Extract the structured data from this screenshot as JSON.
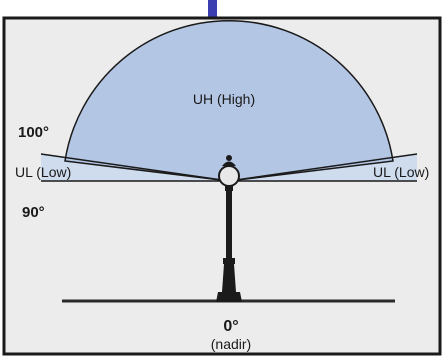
{
  "diagram": {
    "zones": {
      "high": "UH (High)",
      "low_left": "UL (Low)",
      "low_right": "UL (Low)"
    },
    "angles": {
      "upper": "100°",
      "lower": "90°",
      "nadir_value": "0°",
      "nadir_label": "(nadir)"
    },
    "colors": {
      "background": "#ececec",
      "frame": "#1a1a1a",
      "accent_bar": "#3a3eb0",
      "uh_fill": "#b3c6e3",
      "ul_fill": "#cfdcee",
      "lamp": "#1b1b1b"
    }
  }
}
